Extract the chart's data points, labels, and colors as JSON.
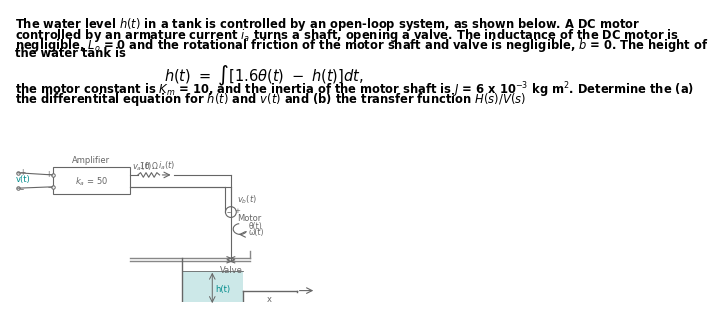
{
  "background_color": "#ffffff",
  "text_color": "#000000",
  "teal_color": "#008B8B",
  "water_color": "#cce8e8",
  "line_color": "#888888",
  "circuit_color": "#666666",
  "diagram_label_amplifier": "Amplifier",
  "diagram_label_ka": "k_a = 50",
  "diagram_label_va_out": "v_a(t)",
  "diagram_label_ia": "i_a(t)",
  "diagram_label_va_sum": "v_b(t)",
  "diagram_label_motor": "Motor",
  "diagram_label_theta": "θ(t)",
  "diagram_label_omega": "ω(t)",
  "diagram_label_valve": "Valve",
  "diagram_label_ht": "h(t)",
  "diagram_label_10ohm": "10 Ω",
  "diagram_label_vt": "v(t)",
  "lines_p1": [
    "The water level h(t) in a tank is controlled by an open-loop system, as shown below. A DC motor",
    "controlled by an armature current i_a turns a shaft, opening a valve. The inductance of the DC motor is",
    "negligible, L_o = 0 and the rotational friction of the motor shaft and valve is negligible, b = 0. The height of",
    "the water tank is"
  ],
  "lines_p2": [
    "the motor constant is K_m = 10, and the inertia of the motor shaft is J = 6 x 10^{-3} kg m^2. Determine the (a)",
    "the differentital equation for h(t) and v(t) and (b) the transfer function H(s)/V(s)"
  ]
}
